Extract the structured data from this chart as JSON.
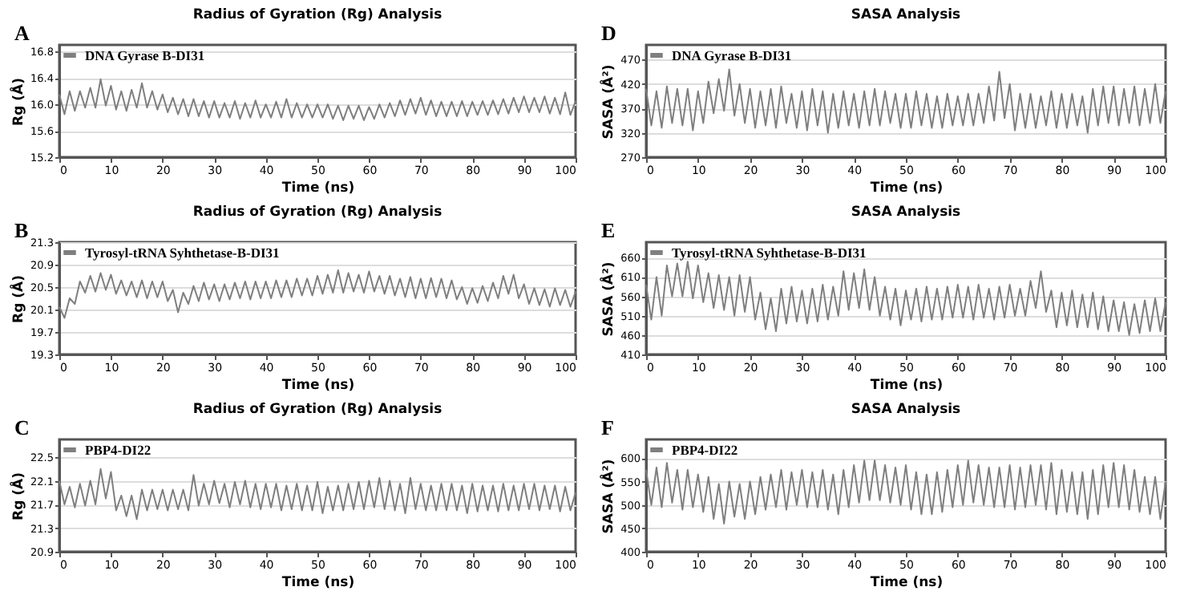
{
  "chart_data": [
    {
      "type": "line",
      "title": "Radius of Gyration (Rg) Analysis",
      "xlabel": "Time (ns)",
      "ylabel": "Rg (Å)",
      "annotations": [
        "A"
      ],
      "legend": "top left",
      "grid": "y",
      "line_style": "solid",
      "xlim": [
        0,
        100
      ],
      "xticks": [
        0,
        10,
        20,
        30,
        40,
        50,
        60,
        70,
        80,
        90,
        100
      ],
      "ylim": [
        15.2,
        16.9
      ],
      "yticks": [
        15.2,
        15.6,
        {
          "value": 16,
          "label": "16.0"
        },
        16.4,
        16.8
      ],
      "x": [
        0,
        1,
        2,
        3,
        4,
        5,
        6,
        7,
        8,
        9,
        10,
        11,
        12,
        13,
        14,
        15,
        16,
        17,
        18,
        19,
        20,
        21,
        22,
        23,
        24,
        25,
        26,
        27,
        28,
        29,
        30,
        31,
        32,
        33,
        34,
        35,
        36,
        37,
        38,
        39,
        40,
        41,
        42,
        43,
        44,
        45,
        46,
        47,
        48,
        49,
        50,
        51,
        52,
        53,
        54,
        55,
        56,
        57,
        58,
        59,
        60,
        61,
        62,
        63,
        64,
        65,
        66,
        67,
        68,
        69,
        70,
        71,
        72,
        73,
        74,
        75,
        76,
        77,
        78,
        79,
        80,
        81,
        82,
        83,
        84,
        85,
        86,
        87,
        88,
        89,
        90,
        91,
        92,
        93,
        94,
        95,
        96,
        97,
        98,
        99,
        100
      ],
      "series": [
        {
          "name": "DNA Gyrase B-DI31",
          "color": "#7f7f7f",
          "values": [
            16.15,
            15.85,
            16.2,
            15.9,
            16.2,
            15.95,
            16.25,
            15.95,
            16.38,
            15.98,
            16.28,
            15.92,
            16.2,
            15.9,
            16.22,
            15.95,
            16.32,
            15.95,
            16.2,
            15.92,
            16.15,
            15.88,
            16.1,
            15.85,
            16.08,
            15.82,
            16.08,
            15.82,
            16.05,
            15.8,
            16.05,
            15.8,
            16.02,
            15.8,
            16.05,
            15.78,
            16.02,
            15.8,
            16.06,
            15.8,
            16.0,
            15.8,
            16.04,
            15.8,
            16.08,
            15.8,
            16.02,
            15.8,
            16.0,
            15.8,
            16.0,
            15.8,
            16.0,
            15.78,
            15.98,
            15.76,
            15.98,
            15.78,
            15.98,
            15.76,
            15.96,
            15.78,
            16.0,
            15.8,
            16.02,
            15.82,
            16.06,
            15.84,
            16.08,
            15.86,
            16.1,
            15.84,
            16.06,
            15.82,
            16.04,
            15.82,
            16.04,
            15.82,
            16.05,
            15.82,
            16.04,
            15.84,
            16.05,
            15.84,
            16.06,
            15.85,
            16.08,
            15.86,
            16.1,
            15.88,
            16.12,
            15.88,
            16.1,
            15.88,
            16.12,
            15.86,
            16.1,
            15.85,
            16.18,
            15.84,
            16.05
          ]
        }
      ]
    },
    {
      "type": "line",
      "title": "SASA Analysis",
      "xlabel": "Time (ns)",
      "ylabel": "SASA (Å²)",
      "annotations": [
        "D"
      ],
      "legend": "top left",
      "grid": "y",
      "line_style": "solid",
      "xlim": [
        0,
        100
      ],
      "xticks": [
        0,
        10,
        20,
        30,
        40,
        50,
        60,
        70,
        80,
        90,
        100
      ],
      "ylim": [
        270,
        500
      ],
      "yticks": [
        270,
        320,
        370,
        420,
        470
      ],
      "x": [
        0,
        1,
        2,
        3,
        4,
        5,
        6,
        7,
        8,
        9,
        10,
        11,
        12,
        13,
        14,
        15,
        16,
        17,
        18,
        19,
        20,
        21,
        22,
        23,
        24,
        25,
        26,
        27,
        28,
        29,
        30,
        31,
        32,
        33,
        34,
        35,
        36,
        37,
        38,
        39,
        40,
        41,
        42,
        43,
        44,
        45,
        46,
        47,
        48,
        49,
        50,
        51,
        52,
        53,
        54,
        55,
        56,
        57,
        58,
        59,
        60,
        61,
        62,
        63,
        64,
        65,
        66,
        67,
        68,
        69,
        70,
        71,
        72,
        73,
        74,
        75,
        76,
        77,
        78,
        79,
        80,
        81,
        82,
        83,
        84,
        85,
        86,
        87,
        88,
        89,
        90,
        91,
        92,
        93,
        94,
        95,
        96,
        97,
        98,
        99,
        100
      ],
      "series": [
        {
          "name": "DNA Gyrase B-DI31",
          "color": "#7f7f7f",
          "values": [
            410,
            335,
            405,
            330,
            415,
            340,
            410,
            335,
            410,
            325,
            405,
            340,
            425,
            360,
            430,
            365,
            450,
            355,
            420,
            340,
            410,
            330,
            405,
            335,
            410,
            330,
            415,
            340,
            400,
            330,
            405,
            325,
            410,
            335,
            405,
            320,
            400,
            330,
            405,
            335,
            400,
            330,
            405,
            335,
            410,
            335,
            405,
            340,
            400,
            330,
            400,
            330,
            405,
            335,
            400,
            330,
            395,
            330,
            400,
            335,
            395,
            335,
            400,
            335,
            400,
            340,
            415,
            345,
            445,
            350,
            420,
            325,
            400,
            330,
            400,
            330,
            395,
            335,
            405,
            330,
            400,
            330,
            400,
            335,
            395,
            320,
            410,
            335,
            415,
            340,
            415,
            335,
            410,
            340,
            415,
            335,
            410,
            340,
            420,
            340,
            405
          ]
        }
      ]
    },
    {
      "type": "line",
      "title": "Radius of Gyration (Rg) Analysis",
      "xlabel": "Time (ns)",
      "ylabel": "Rg (Å)",
      "annotations": [
        "B"
      ],
      "legend": "top left",
      "grid": "y",
      "line_style": "solid",
      "xlim": [
        0,
        100
      ],
      "xticks": [
        0,
        10,
        20,
        30,
        40,
        50,
        60,
        70,
        80,
        90,
        100
      ],
      "ylim": [
        19.3,
        21.3
      ],
      "yticks": [
        19.3,
        19.7,
        20.1,
        20.5,
        20.9,
        21.3
      ],
      "x": [
        0,
        1,
        2,
        3,
        4,
        5,
        6,
        7,
        8,
        9,
        10,
        11,
        12,
        13,
        14,
        15,
        16,
        17,
        18,
        19,
        20,
        21,
        22,
        23,
        24,
        25,
        26,
        27,
        28,
        29,
        30,
        31,
        32,
        33,
        34,
        35,
        36,
        37,
        38,
        39,
        40,
        41,
        42,
        43,
        44,
        45,
        46,
        47,
        48,
        49,
        50,
        51,
        52,
        53,
        54,
        55,
        56,
        57,
        58,
        59,
        60,
        61,
        62,
        63,
        64,
        65,
        66,
        67,
        68,
        69,
        70,
        71,
        72,
        73,
        74,
        75,
        76,
        77,
        78,
        79,
        80,
        81,
        82,
        83,
        84,
        85,
        86,
        87,
        88,
        89,
        90,
        91,
        92,
        93,
        94,
        95,
        96,
        97,
        98,
        99,
        100
      ],
      "series": [
        {
          "name": "Tyrosyl-tRNA Syhthetase-B-DI31",
          "color": "#7f7f7f",
          "values": [
            20.15,
            19.95,
            20.3,
            20.2,
            20.6,
            20.4,
            20.7,
            20.42,
            20.75,
            20.45,
            20.72,
            20.38,
            20.62,
            20.35,
            20.6,
            20.32,
            20.62,
            20.3,
            20.6,
            20.32,
            20.6,
            20.25,
            20.45,
            20.05,
            20.4,
            20.2,
            20.52,
            20.25,
            20.58,
            20.28,
            20.55,
            20.25,
            20.55,
            20.28,
            20.58,
            20.3,
            20.6,
            20.28,
            20.6,
            20.3,
            20.6,
            20.3,
            20.62,
            20.32,
            20.62,
            20.32,
            20.65,
            20.35,
            20.65,
            20.35,
            20.7,
            20.38,
            20.72,
            20.4,
            20.8,
            20.4,
            20.75,
            20.42,
            20.72,
            20.4,
            20.78,
            20.42,
            20.7,
            20.38,
            20.7,
            20.35,
            20.65,
            20.32,
            20.68,
            20.3,
            20.65,
            20.3,
            20.66,
            20.32,
            20.65,
            20.3,
            20.62,
            20.28,
            20.5,
            20.2,
            20.48,
            20.22,
            20.52,
            20.25,
            20.58,
            20.3,
            20.7,
            20.38,
            20.72,
            20.3,
            20.55,
            20.2,
            20.48,
            20.18,
            20.46,
            20.15,
            20.48,
            20.18,
            20.45,
            20.15,
            20.42
          ]
        }
      ]
    },
    {
      "type": "line",
      "title": "SASA Analysis",
      "xlabel": "Time (ns)",
      "ylabel": "SASA (Å²)",
      "annotations": [
        "E"
      ],
      "legend": "top left",
      "grid": "y",
      "line_style": "solid",
      "xlim": [
        0,
        100
      ],
      "xticks": [
        0,
        10,
        20,
        30,
        40,
        50,
        60,
        70,
        80,
        90,
        100
      ],
      "ylim": [
        410,
        700
      ],
      "yticks": [
        410,
        460,
        510,
        560,
        610,
        660
      ],
      "x": [
        0,
        1,
        2,
        3,
        4,
        5,
        6,
        7,
        8,
        9,
        10,
        11,
        12,
        13,
        14,
        15,
        16,
        17,
        18,
        19,
        20,
        21,
        22,
        23,
        24,
        25,
        26,
        27,
        28,
        29,
        30,
        31,
        32,
        33,
        34,
        35,
        36,
        37,
        38,
        39,
        40,
        41,
        42,
        43,
        44,
        45,
        46,
        47,
        48,
        49,
        50,
        51,
        52,
        53,
        54,
        55,
        56,
        57,
        58,
        59,
        60,
        61,
        62,
        63,
        64,
        65,
        66,
        67,
        68,
        69,
        70,
        71,
        72,
        73,
        74,
        75,
        76,
        77,
        78,
        79,
        80,
        81,
        82,
        83,
        84,
        85,
        86,
        87,
        88,
        89,
        90,
        91,
        92,
        93,
        94,
        95,
        96,
        97,
        98,
        99,
        100
      ],
      "series": [
        {
          "name": "Tyrosyl-tRNA Syhthetase-B-DI31",
          "color": "#7f7f7f",
          "values": [
            590,
            500,
            610,
            510,
            640,
            560,
            645,
            560,
            650,
            555,
            640,
            545,
            620,
            530,
            615,
            525,
            610,
            510,
            615,
            520,
            610,
            500,
            570,
            475,
            555,
            470,
            580,
            490,
            585,
            495,
            575,
            490,
            580,
            495,
            590,
            500,
            585,
            510,
            625,
            525,
            620,
            530,
            630,
            525,
            610,
            510,
            585,
            500,
            580,
            485,
            575,
            500,
            580,
            495,
            585,
            500,
            580,
            500,
            585,
            505,
            590,
            505,
            585,
            500,
            590,
            505,
            580,
            500,
            585,
            505,
            590,
            510,
            580,
            510,
            600,
            530,
            625,
            520,
            575,
            480,
            570,
            485,
            575,
            480,
            565,
            480,
            570,
            475,
            560,
            470,
            550,
            470,
            545,
            460,
            540,
            465,
            550,
            470,
            555,
            470,
            545
          ]
        }
      ]
    },
    {
      "type": "line",
      "title": "Radius of Gyration (Rg) Analysis",
      "xlabel": "Time (ns)",
      "ylabel": "Rg (Å)",
      "annotations": [
        "C"
      ],
      "legend": "top left",
      "grid": "y",
      "line_style": "solid",
      "xlim": [
        0,
        100
      ],
      "xticks": [
        0,
        10,
        20,
        30,
        40,
        50,
        60,
        70,
        80,
        90,
        100
      ],
      "ylim": [
        20.9,
        22.8
      ],
      "yticks": [
        20.9,
        21.3,
        21.7,
        22.1,
        22.5
      ],
      "x": [
        0,
        1,
        2,
        3,
        4,
        5,
        6,
        7,
        8,
        9,
        10,
        11,
        12,
        13,
        14,
        15,
        16,
        17,
        18,
        19,
        20,
        21,
        22,
        23,
        24,
        25,
        26,
        27,
        28,
        29,
        30,
        31,
        32,
        33,
        34,
        35,
        36,
        37,
        38,
        39,
        40,
        41,
        42,
        43,
        44,
        45,
        46,
        47,
        48,
        49,
        50,
        51,
        52,
        53,
        54,
        55,
        56,
        57,
        58,
        59,
        60,
        61,
        62,
        63,
        64,
        65,
        66,
        67,
        68,
        69,
        70,
        71,
        72,
        73,
        74,
        75,
        76,
        77,
        78,
        79,
        80,
        81,
        82,
        83,
        84,
        85,
        86,
        87,
        88,
        89,
        90,
        91,
        92,
        93,
        94,
        95,
        96,
        97,
        98,
        99,
        100
      ],
      "series": [
        {
          "name": "PBP4-DI22",
          "color": "#7f7f7f",
          "values": [
            22.1,
            21.7,
            22.0,
            21.65,
            22.05,
            21.68,
            22.1,
            21.7,
            22.3,
            21.8,
            22.25,
            21.6,
            21.85,
            21.5,
            21.85,
            21.45,
            21.95,
            21.6,
            21.95,
            21.62,
            21.95,
            21.6,
            21.95,
            21.62,
            21.95,
            21.6,
            22.2,
            21.68,
            22.05,
            21.7,
            22.1,
            21.72,
            22.05,
            21.65,
            22.08,
            21.7,
            22.1,
            21.65,
            22.05,
            21.62,
            22.05,
            21.65,
            22.05,
            21.6,
            22.02,
            21.62,
            22.05,
            21.6,
            22.02,
            21.6,
            22.08,
            21.55,
            22.0,
            21.6,
            22.02,
            21.6,
            22.05,
            21.62,
            22.08,
            21.62,
            22.1,
            21.65,
            22.15,
            21.62,
            22.1,
            21.6,
            22.05,
            21.55,
            22.15,
            21.62,
            22.05,
            21.6,
            22.02,
            21.6,
            22.05,
            21.6,
            22.05,
            21.6,
            22.02,
            21.55,
            22.05,
            21.58,
            22.02,
            21.6,
            22.02,
            21.58,
            22.05,
            21.6,
            22.02,
            21.6,
            22.05,
            21.62,
            22.05,
            21.6,
            22.02,
            21.62,
            22.02,
            21.58,
            22.0,
            21.6,
            21.9
          ]
        }
      ]
    },
    {
      "type": "line",
      "title": "SASA Analysis",
      "xlabel": "Time (ns)",
      "ylabel": "SASA (Å²)",
      "annotations": [
        "F"
      ],
      "legend": "top left",
      "grid": "y",
      "line_style": "solid",
      "xlim": [
        0,
        100
      ],
      "xticks": [
        0,
        10,
        20,
        30,
        40,
        50,
        60,
        70,
        80,
        90,
        100
      ],
      "ylim": [
        400,
        640
      ],
      "yticks": [
        400,
        450,
        500,
        550,
        600
      ],
      "x": [
        0,
        1,
        2,
        3,
        4,
        5,
        6,
        7,
        8,
        9,
        10,
        11,
        12,
        13,
        14,
        15,
        16,
        17,
        18,
        19,
        20,
        21,
        22,
        23,
        24,
        25,
        26,
        27,
        28,
        29,
        30,
        31,
        32,
        33,
        34,
        35,
        36,
        37,
        38,
        39,
        40,
        41,
        42,
        43,
        44,
        45,
        46,
        47,
        48,
        49,
        50,
        51,
        52,
        53,
        54,
        55,
        56,
        57,
        58,
        59,
        60,
        61,
        62,
        63,
        64,
        65,
        66,
        67,
        68,
        69,
        70,
        71,
        72,
        73,
        74,
        75,
        76,
        77,
        78,
        79,
        80,
        81,
        82,
        83,
        84,
        85,
        86,
        87,
        88,
        89,
        90,
        91,
        92,
        93,
        94,
        95,
        96,
        97,
        98,
        99,
        100
      ],
      "series": [
        {
          "name": "PBP4-DI22",
          "color": "#7f7f7f",
          "values": [
            575,
            500,
            580,
            495,
            590,
            505,
            575,
            490,
            575,
            495,
            565,
            485,
            560,
            470,
            545,
            460,
            550,
            475,
            545,
            470,
            550,
            480,
            560,
            490,
            565,
            495,
            575,
            490,
            570,
            500,
            575,
            495,
            570,
            495,
            575,
            490,
            565,
            480,
            575,
            495,
            585,
            505,
            595,
            510,
            595,
            510,
            585,
            505,
            580,
            500,
            585,
            490,
            570,
            480,
            565,
            480,
            570,
            485,
            575,
            495,
            585,
            500,
            595,
            505,
            585,
            500,
            580,
            495,
            580,
            495,
            585,
            490,
            580,
            495,
            585,
            500,
            585,
            490,
            590,
            480,
            575,
            485,
            570,
            480,
            570,
            470,
            575,
            480,
            585,
            495,
            590,
            495,
            585,
            490,
            575,
            485,
            560,
            480,
            560,
            470,
            550
          ]
        }
      ]
    }
  ]
}
